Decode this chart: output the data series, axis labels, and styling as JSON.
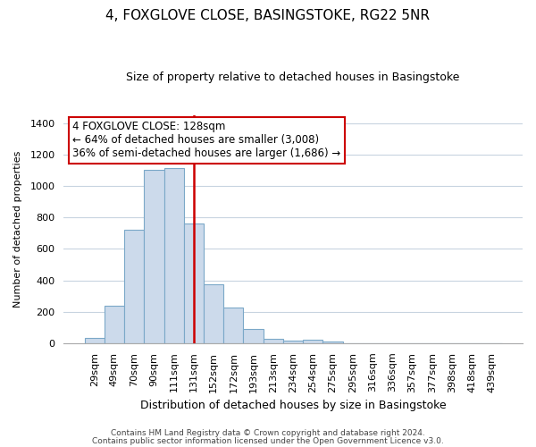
{
  "title": "4, FOXGLOVE CLOSE, BASINGSTOKE, RG22 5NR",
  "subtitle": "Size of property relative to detached houses in Basingstoke",
  "xlabel": "Distribution of detached houses by size in Basingstoke",
  "ylabel": "Number of detached properties",
  "bar_labels": [
    "29sqm",
    "49sqm",
    "70sqm",
    "90sqm",
    "111sqm",
    "131sqm",
    "152sqm",
    "172sqm",
    "193sqm",
    "213sqm",
    "234sqm",
    "254sqm",
    "275sqm",
    "295sqm",
    "316sqm",
    "336sqm",
    "357sqm",
    "377sqm",
    "398sqm",
    "418sqm",
    "439sqm"
  ],
  "bar_heights": [
    35,
    240,
    720,
    1100,
    1115,
    760,
    375,
    228,
    90,
    30,
    18,
    25,
    10,
    0,
    0,
    0,
    0,
    0,
    0,
    0,
    0
  ],
  "bar_color": "#ccdaeb",
  "bar_edge_color": "#7ba8c8",
  "vline_x_index": 5,
  "vline_color": "#cc0000",
  "ann_line1": "4 FOXGLOVE CLOSE: 128sqm",
  "ann_line2": "← 64% of detached houses are smaller (3,008)",
  "ann_line3": "36% of semi-detached houses are larger (1,686) →",
  "ylim": [
    0,
    1450
  ],
  "yticks": [
    0,
    200,
    400,
    600,
    800,
    1000,
    1200,
    1400
  ],
  "footer1": "Contains HM Land Registry data © Crown copyright and database right 2024.",
  "footer2": "Contains public sector information licensed under the Open Government Licence v3.0.",
  "background_color": "#ffffff",
  "grid_color": "#c8d4e0",
  "title_fontsize": 11,
  "subtitle_fontsize": 9,
  "xlabel_fontsize": 9,
  "ylabel_fontsize": 8,
  "tick_fontsize": 8,
  "ann_fontsize": 8.5,
  "footer_fontsize": 6.5
}
